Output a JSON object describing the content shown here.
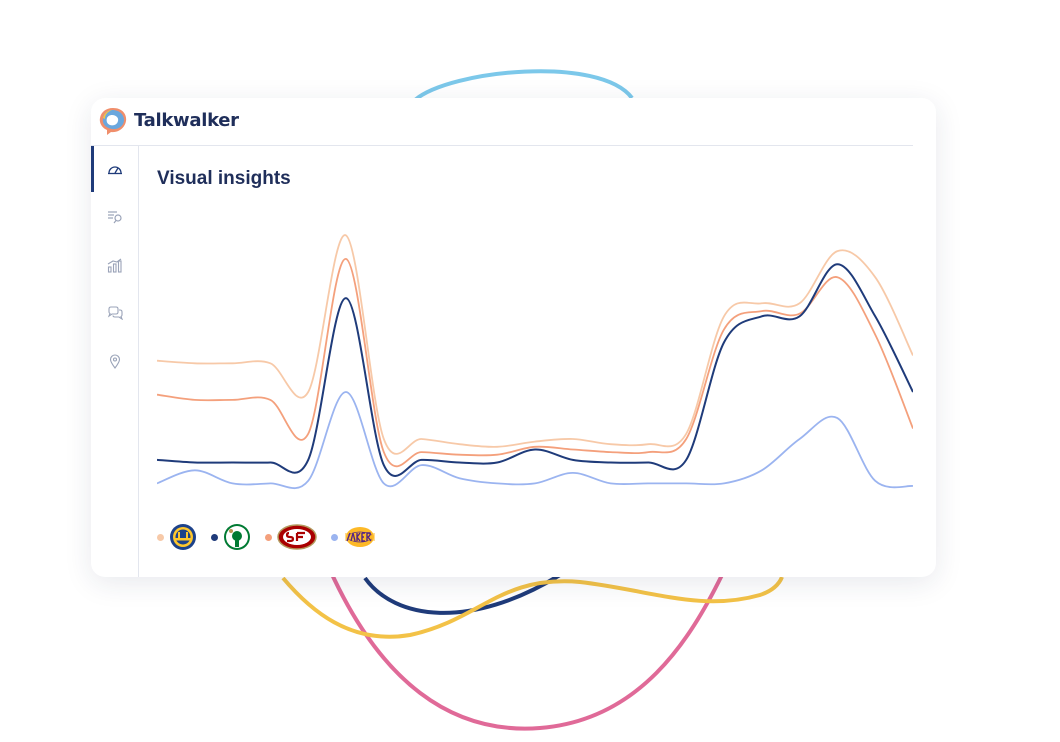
{
  "app": {
    "brand": "Talkwalker"
  },
  "sidebar": {
    "items": [
      {
        "icon": "dashboard-gauge-icon",
        "active": true
      },
      {
        "icon": "search-list-icon",
        "active": false
      },
      {
        "icon": "bar-chart-icon",
        "active": false
      },
      {
        "icon": "chat-bubbles-icon",
        "active": false
      },
      {
        "icon": "location-pin-icon",
        "active": false
      }
    ]
  },
  "main": {
    "title": "Visual insights"
  },
  "chart_data": {
    "type": "line",
    "title": "Visual insights",
    "xlabel": "",
    "ylabel": "",
    "ylim": [
      0,
      100
    ],
    "grid": false,
    "legend_position": "bottom-left",
    "x": [
      0,
      5,
      10,
      15,
      20,
      25,
      30,
      35,
      40,
      45,
      50,
      55,
      60,
      65,
      70,
      75,
      80,
      85,
      90,
      95,
      100
    ],
    "series": [
      {
        "team": "Golden State Warriors",
        "color": "#f7c9a8",
        "values": [
          48,
          47,
          47,
          47,
          36,
          96,
          18,
          18,
          16,
          15,
          17,
          18,
          16,
          16,
          20,
          65,
          70,
          70,
          90,
          80,
          50
        ]
      },
      {
        "team": "Boston Celtics",
        "color": "#1f3b7a",
        "values": [
          10,
          9,
          9,
          9,
          10,
          72,
          8,
          10,
          9,
          9,
          14,
          10,
          9,
          9,
          10,
          55,
          65,
          65,
          85,
          65,
          36
        ]
      },
      {
        "team": "San Francisco 49ers",
        "color": "#f4a07c",
        "values": [
          35,
          33,
          33,
          33,
          20,
          87,
          13,
          13,
          12,
          12,
          15,
          14,
          13,
          13,
          18,
          60,
          67,
          66,
          80,
          58,
          22
        ]
      },
      {
        "team": "Los Angeles Lakers",
        "color": "#9bb4f0",
        "values": [
          1,
          6,
          1,
          1,
          2,
          36,
          1,
          8,
          3,
          1,
          1,
          5,
          1,
          1,
          1,
          1,
          6,
          18,
          26,
          2,
          0
        ]
      }
    ]
  },
  "legend": [
    {
      "team": "Golden State Warriors",
      "color": "#f7c9a8",
      "logo": "warriors-logo"
    },
    {
      "team": "Boston Celtics",
      "color": "#1f3b7a",
      "logo": "celtics-logo"
    },
    {
      "team": "San Francisco 49ers",
      "color": "#f4a07c",
      "logo": "49ers-logo"
    },
    {
      "team": "Los Angeles Lakers",
      "color": "#9bb4f0",
      "logo": "lakers-logo"
    }
  ]
}
